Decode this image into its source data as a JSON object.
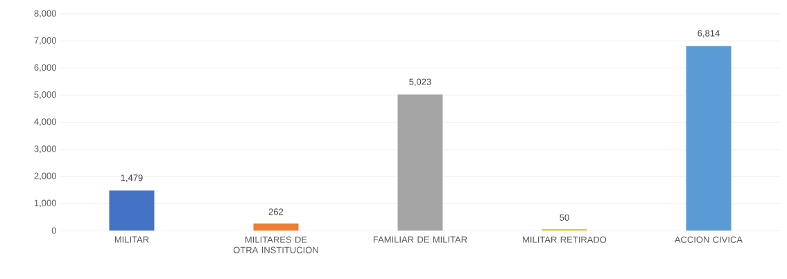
{
  "chart_data": {
    "type": "bar",
    "categories": [
      "MILITAR",
      "MILITARES DE OTRA INSTITUCION",
      "FAMILIAR DE MILITAR",
      "MILITAR RETIRADO",
      "ACCION CIVICA"
    ],
    "values": [
      1479,
      262,
      5023,
      50,
      6814
    ],
    "colors": [
      "#4472c4",
      "#ed7d31",
      "#a5a5a5",
      "#ffc000",
      "#5b9bd5"
    ],
    "value_labels": [
      "1,479",
      "262",
      "5,023",
      "50",
      "6,814"
    ],
    "ylim": [
      0,
      8000
    ],
    "yticks": [
      {
        "value": 0,
        "label": "0"
      },
      {
        "value": 1000,
        "label": "1,000"
      },
      {
        "value": 2000,
        "label": "2,000"
      },
      {
        "value": 3000,
        "label": "3,000"
      },
      {
        "value": 4000,
        "label": "4,000"
      },
      {
        "value": 5000,
        "label": "5,000"
      },
      {
        "value": 6000,
        "label": "6,000"
      },
      {
        "value": 7000,
        "label": "7,000"
      },
      {
        "value": 8000,
        "label": "8,000"
      }
    ],
    "grid": "y"
  }
}
